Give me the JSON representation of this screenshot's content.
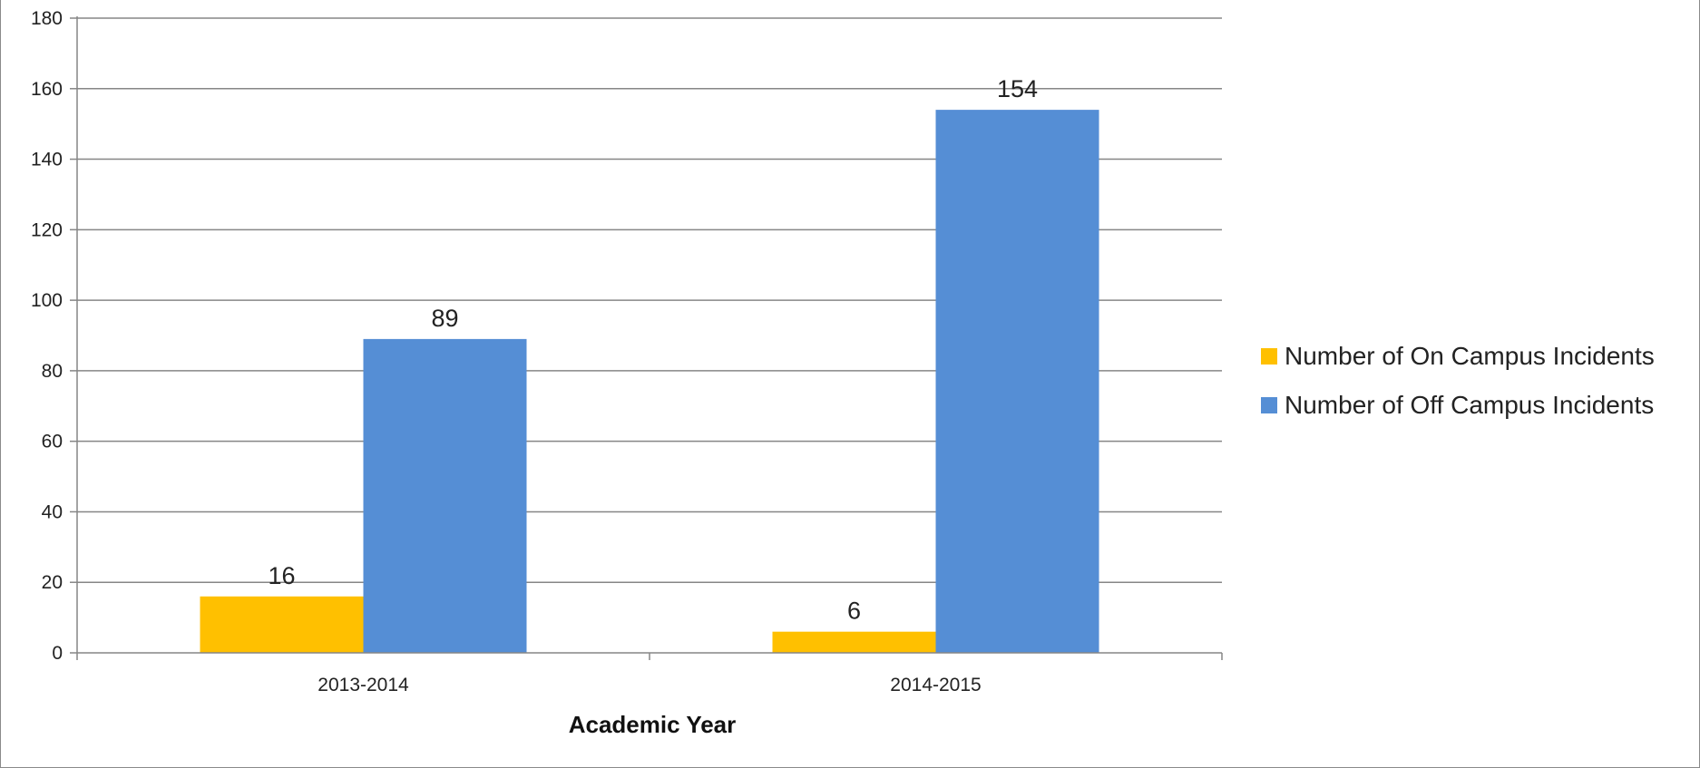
{
  "chart_data": {
    "type": "bar",
    "categories": [
      "2013-2014",
      "2014-2015"
    ],
    "series": [
      {
        "name": "Number of On Campus Incidents",
        "values": [
          16,
          6
        ],
        "color": "#FFC000"
      },
      {
        "name": "Number of Off Campus Incidents",
        "values": [
          89,
          154
        ],
        "color": "#558ED5"
      }
    ],
    "title": "",
    "xlabel": "Academic Year",
    "ylabel": "",
    "ylim": [
      0,
      180
    ],
    "yticks": [
      0,
      20,
      40,
      60,
      80,
      100,
      120,
      140,
      160,
      180
    ],
    "grid": true,
    "legend_position": "right",
    "data_labels": true
  }
}
